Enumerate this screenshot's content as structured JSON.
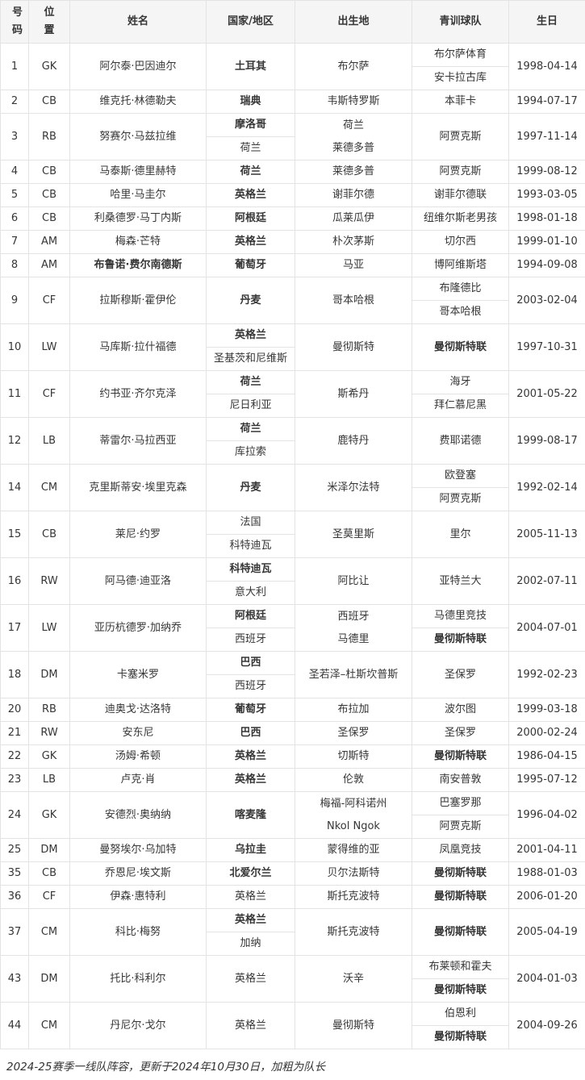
{
  "colors": {
    "header_bg": "#f5f5f5",
    "border": "#e3e3e3",
    "text": "#363636"
  },
  "table": {
    "headers": [
      "号码",
      "位置",
      "姓名",
      "国家/地区",
      "出生地",
      "青训球队",
      "生日"
    ],
    "players": [
      {
        "number": "1",
        "position": "GK",
        "name": "阿尔泰·巴因迪尔",
        "name_bold": false,
        "nationalities": [
          {
            "text": "土耳其",
            "bold": true
          }
        ],
        "birthplace_lines": [
          "布尔萨"
        ],
        "youth_clubs": [
          {
            "text": "布尔萨体育",
            "bold": false
          },
          {
            "text": "安卡拉古库",
            "bold": false
          }
        ],
        "birthday": "1998-04-14"
      },
      {
        "number": "2",
        "position": "CB",
        "name": "维克托·林德勒夫",
        "name_bold": false,
        "nationalities": [
          {
            "text": "瑞典",
            "bold": true
          }
        ],
        "birthplace_lines": [
          "韦斯特罗斯"
        ],
        "youth_clubs": [
          {
            "text": "本菲卡",
            "bold": false
          }
        ],
        "birthday": "1994-07-17"
      },
      {
        "number": "3",
        "position": "RB",
        "name": "努赛尔·马兹拉维",
        "name_bold": false,
        "nationalities": [
          {
            "text": "摩洛哥",
            "bold": true
          },
          {
            "text": "荷兰",
            "bold": false
          }
        ],
        "birthplace_lines": [
          "荷兰",
          "莱德多普"
        ],
        "youth_clubs": [
          {
            "text": "阿贾克斯",
            "bold": false
          }
        ],
        "birthday": "1997-11-14"
      },
      {
        "number": "4",
        "position": "CB",
        "name": "马泰斯·德里赫特",
        "name_bold": false,
        "nationalities": [
          {
            "text": "荷兰",
            "bold": true
          }
        ],
        "birthplace_lines": [
          "莱德多普"
        ],
        "youth_clubs": [
          {
            "text": "阿贾克斯",
            "bold": false
          }
        ],
        "birthday": "1999-08-12"
      },
      {
        "number": "5",
        "position": "CB",
        "name": "哈里·马圭尔",
        "name_bold": false,
        "nationalities": [
          {
            "text": "英格兰",
            "bold": true
          }
        ],
        "birthplace_lines": [
          "谢菲尔德"
        ],
        "youth_clubs": [
          {
            "text": "谢菲尔德联",
            "bold": false
          }
        ],
        "birthday": "1993-03-05"
      },
      {
        "number": "6",
        "position": "CB",
        "name": "利桑德罗·马丁内斯",
        "name_bold": false,
        "nationalities": [
          {
            "text": "阿根廷",
            "bold": true
          }
        ],
        "birthplace_lines": [
          "瓜莱瓜伊"
        ],
        "youth_clubs": [
          {
            "text": "纽维尔斯老男孩",
            "bold": false
          }
        ],
        "birthday": "1998-01-18"
      },
      {
        "number": "7",
        "position": "AM",
        "name": "梅森·芒特",
        "name_bold": false,
        "nationalities": [
          {
            "text": "英格兰",
            "bold": true
          }
        ],
        "birthplace_lines": [
          "朴次茅斯"
        ],
        "youth_clubs": [
          {
            "text": "切尔西",
            "bold": false
          }
        ],
        "birthday": "1999-01-10"
      },
      {
        "number": "8",
        "position": "AM",
        "name": "布鲁诺·费尔南德斯",
        "name_bold": true,
        "nationalities": [
          {
            "text": "葡萄牙",
            "bold": true
          }
        ],
        "birthplace_lines": [
          "马亚"
        ],
        "youth_clubs": [
          {
            "text": "博阿维斯塔",
            "bold": false
          }
        ],
        "birthday": "1994-09-08"
      },
      {
        "number": "9",
        "position": "CF",
        "name": "拉斯穆斯·霍伊伦",
        "name_bold": false,
        "nationalities": [
          {
            "text": "丹麦",
            "bold": true
          }
        ],
        "birthplace_lines": [
          "哥本哈根"
        ],
        "youth_clubs": [
          {
            "text": "布隆德比",
            "bold": false
          },
          {
            "text": "哥本哈根",
            "bold": false
          }
        ],
        "birthday": "2003-02-04"
      },
      {
        "number": "10",
        "position": "LW",
        "name": "马库斯·拉什福德",
        "name_bold": false,
        "nationalities": [
          {
            "text": "英格兰",
            "bold": true
          },
          {
            "text": "圣基茨和尼维斯",
            "bold": false
          }
        ],
        "birthplace_lines": [
          "曼彻斯特"
        ],
        "youth_clubs": [
          {
            "text": "曼彻斯特联",
            "bold": true
          }
        ],
        "birthday": "1997-10-31"
      },
      {
        "number": "11",
        "position": "CF",
        "name": "约书亚·齐尔克泽",
        "name_bold": false,
        "nationalities": [
          {
            "text": "荷兰",
            "bold": true
          },
          {
            "text": "尼日利亚",
            "bold": false
          }
        ],
        "birthplace_lines": [
          "斯希丹"
        ],
        "youth_clubs": [
          {
            "text": "海牙",
            "bold": false
          },
          {
            "text": "拜仁慕尼黑",
            "bold": false
          }
        ],
        "birthday": "2001-05-22"
      },
      {
        "number": "12",
        "position": "LB",
        "name": "蒂雷尔·马拉西亚",
        "name_bold": false,
        "nationalities": [
          {
            "text": "荷兰",
            "bold": true
          },
          {
            "text": "库拉索",
            "bold": false
          }
        ],
        "birthplace_lines": [
          "鹿特丹"
        ],
        "youth_clubs": [
          {
            "text": "费耶诺德",
            "bold": false
          }
        ],
        "birthday": "1999-08-17"
      },
      {
        "number": "14",
        "position": "CM",
        "name": "克里斯蒂安·埃里克森",
        "name_bold": false,
        "nationalities": [
          {
            "text": "丹麦",
            "bold": true
          }
        ],
        "birthplace_lines": [
          "米泽尔法特"
        ],
        "youth_clubs": [
          {
            "text": "欧登塞",
            "bold": false
          },
          {
            "text": "阿贾克斯",
            "bold": false
          }
        ],
        "birthday": "1992-02-14"
      },
      {
        "number": "15",
        "position": "CB",
        "name": "莱尼·约罗",
        "name_bold": false,
        "nationalities": [
          {
            "text": "法国",
            "bold": false
          },
          {
            "text": "科特迪瓦",
            "bold": false
          }
        ],
        "birthplace_lines": [
          "圣莫里斯"
        ],
        "youth_clubs": [
          {
            "text": "里尔",
            "bold": false
          }
        ],
        "birthday": "2005-11-13"
      },
      {
        "number": "16",
        "position": "RW",
        "name": "阿马德·迪亚洛",
        "name_bold": false,
        "nationalities": [
          {
            "text": "科特迪瓦",
            "bold": true
          },
          {
            "text": "意大利",
            "bold": false
          }
        ],
        "birthplace_lines": [
          "阿比让"
        ],
        "youth_clubs": [
          {
            "text": "亚特兰大",
            "bold": false
          }
        ],
        "birthday": "2002-07-11"
      },
      {
        "number": "17",
        "position": "LW",
        "name": "亚历杭德罗·加纳乔",
        "name_bold": false,
        "nationalities": [
          {
            "text": "阿根廷",
            "bold": true
          },
          {
            "text": "西班牙",
            "bold": false
          }
        ],
        "birthplace_lines": [
          "西班牙",
          "马德里"
        ],
        "youth_clubs": [
          {
            "text": "马德里竞技",
            "bold": false
          },
          {
            "text": "曼彻斯特联",
            "bold": true
          }
        ],
        "birthday": "2004-07-01"
      },
      {
        "number": "18",
        "position": "DM",
        "name": "卡塞米罗",
        "name_bold": false,
        "nationalities": [
          {
            "text": "巴西",
            "bold": true
          },
          {
            "text": "西班牙",
            "bold": false
          }
        ],
        "birthplace_lines": [
          "圣若泽–杜斯坎普斯"
        ],
        "youth_clubs": [
          {
            "text": "圣保罗",
            "bold": false
          }
        ],
        "birthday": "1992-02-23"
      },
      {
        "number": "20",
        "position": "RB",
        "name": "迪奥戈·达洛特",
        "name_bold": false,
        "nationalities": [
          {
            "text": "葡萄牙",
            "bold": true
          }
        ],
        "birthplace_lines": [
          "布拉加"
        ],
        "youth_clubs": [
          {
            "text": "波尔图",
            "bold": false
          }
        ],
        "birthday": "1999-03-18"
      },
      {
        "number": "21",
        "position": "RW",
        "name": "安东尼",
        "name_bold": false,
        "nationalities": [
          {
            "text": "巴西",
            "bold": true
          }
        ],
        "birthplace_lines": [
          "圣保罗"
        ],
        "youth_clubs": [
          {
            "text": "圣保罗",
            "bold": false
          }
        ],
        "birthday": "2000-02-24"
      },
      {
        "number": "22",
        "position": "GK",
        "name": "汤姆·希顿",
        "name_bold": false,
        "nationalities": [
          {
            "text": "英格兰",
            "bold": true
          }
        ],
        "birthplace_lines": [
          "切斯特"
        ],
        "youth_clubs": [
          {
            "text": "曼彻斯特联",
            "bold": true
          }
        ],
        "birthday": "1986-04-15"
      },
      {
        "number": "23",
        "position": "LB",
        "name": "卢克·肖",
        "name_bold": false,
        "nationalities": [
          {
            "text": "英格兰",
            "bold": true
          }
        ],
        "birthplace_lines": [
          "伦敦"
        ],
        "youth_clubs": [
          {
            "text": "南安普敦",
            "bold": false
          }
        ],
        "birthday": "1995-07-12"
      },
      {
        "number": "24",
        "position": "GK",
        "name": "安德烈·奥纳纳",
        "name_bold": false,
        "nationalities": [
          {
            "text": "喀麦隆",
            "bold": true
          }
        ],
        "birthplace_lines": [
          "梅福-阿科诺州",
          "Nkol Ngok"
        ],
        "youth_clubs": [
          {
            "text": "巴塞罗那",
            "bold": false
          },
          {
            "text": "阿贾克斯",
            "bold": false
          }
        ],
        "birthday": "1996-04-02"
      },
      {
        "number": "25",
        "position": "DM",
        "name": "曼努埃尔·乌加特",
        "name_bold": false,
        "nationalities": [
          {
            "text": "乌拉圭",
            "bold": true
          }
        ],
        "birthplace_lines": [
          "蒙得维的亚"
        ],
        "youth_clubs": [
          {
            "text": "凤凰竞技",
            "bold": false
          }
        ],
        "birthday": "2001-04-11"
      },
      {
        "number": "35",
        "position": "CB",
        "name": "乔恩尼·埃文斯",
        "name_bold": false,
        "nationalities": [
          {
            "text": "北爱尔兰",
            "bold": true
          }
        ],
        "birthplace_lines": [
          "贝尔法斯特"
        ],
        "youth_clubs": [
          {
            "text": "曼彻斯特联",
            "bold": true
          }
        ],
        "birthday": "1988-01-03"
      },
      {
        "number": "36",
        "position": "CF",
        "name": "伊森·惠特利",
        "name_bold": false,
        "nationalities": [
          {
            "text": "英格兰",
            "bold": false
          }
        ],
        "birthplace_lines": [
          "斯托克波特"
        ],
        "youth_clubs": [
          {
            "text": "曼彻斯特联",
            "bold": true
          }
        ],
        "birthday": "2006-01-20"
      },
      {
        "number": "37",
        "position": "CM",
        "name": "科比·梅努",
        "name_bold": false,
        "nationalities": [
          {
            "text": "英格兰",
            "bold": true
          },
          {
            "text": "加纳",
            "bold": false
          }
        ],
        "birthplace_lines": [
          "斯托克波特"
        ],
        "youth_clubs": [
          {
            "text": "曼彻斯特联",
            "bold": true
          }
        ],
        "birthday": "2005-04-19"
      },
      {
        "number": "43",
        "position": "DM",
        "name": "托比·科利尔",
        "name_bold": false,
        "nationalities": [
          {
            "text": "英格兰",
            "bold": false
          }
        ],
        "birthplace_lines": [
          "沃辛"
        ],
        "youth_clubs": [
          {
            "text": "布莱顿和霍夫",
            "bold": false
          },
          {
            "text": "曼彻斯特联",
            "bold": true
          }
        ],
        "birthday": "2004-01-03"
      },
      {
        "number": "44",
        "position": "CM",
        "name": "丹尼尔·戈尔",
        "name_bold": false,
        "nationalities": [
          {
            "text": "英格兰",
            "bold": false
          }
        ],
        "birthplace_lines": [
          "曼彻斯特"
        ],
        "youth_clubs": [
          {
            "text": "伯恩利",
            "bold": false
          },
          {
            "text": "曼彻斯特联",
            "bold": true
          }
        ],
        "birthday": "2004-09-26"
      }
    ]
  },
  "footnote": {
    "text": "2024-25赛季一线队阵容，更新于2024年10月30日，加粗为队长"
  }
}
